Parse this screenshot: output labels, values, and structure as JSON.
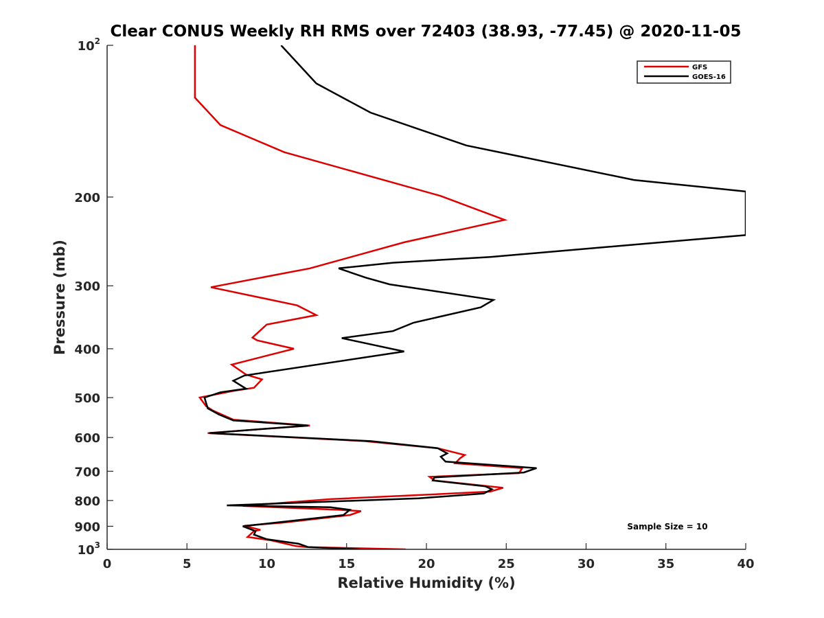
{
  "chart_data": {
    "type": "line",
    "title": "Clear CONUS Weekly RH RMS over 72403 (38.93, -77.45) @ 2020-11-05",
    "xlabel": "Relative Humidity (%)",
    "ylabel": "Pressure (mb)",
    "xlim": [
      0,
      40
    ],
    "ylim": [
      100,
      1000
    ],
    "y_scale": "log",
    "y_reversed": true,
    "grid": false,
    "legend_position": "top-right",
    "x_ticks": [
      "0",
      "5",
      "10",
      "15",
      "20",
      "25",
      "30",
      "35",
      "40"
    ],
    "y_ticks": [
      {
        "value": 100,
        "base": "10",
        "exp": "2"
      },
      {
        "value": 200,
        "label": "200"
      },
      {
        "value": 300,
        "label": "300"
      },
      {
        "value": 400,
        "label": "400"
      },
      {
        "value": 500,
        "label": "500"
      },
      {
        "value": 600,
        "label": "600"
      },
      {
        "value": 700,
        "label": "700"
      },
      {
        "value": 800,
        "label": "800"
      },
      {
        "value": 900,
        "label": "900"
      },
      {
        "value": 1000,
        "base": "10",
        "exp": "3"
      }
    ],
    "series": [
      {
        "name": "GFS",
        "color": "#dd0000",
        "points": [
          [
            18.7,
            1000
          ],
          [
            12.5,
            990
          ],
          [
            11.8,
            985
          ],
          [
            10.3,
            960
          ],
          [
            8.8,
            945
          ],
          [
            9.2,
            920
          ],
          [
            9.6,
            915
          ],
          [
            9.0,
            905
          ],
          [
            8.6,
            898
          ],
          [
            11.0,
            885
          ],
          [
            15.2,
            855
          ],
          [
            15.9,
            840
          ],
          [
            14.6,
            835
          ],
          [
            8.5,
            820
          ],
          [
            14.0,
            795
          ],
          [
            19.7,
            780
          ],
          [
            24.0,
            768
          ],
          [
            24.8,
            755
          ],
          [
            20.5,
            730
          ],
          [
            20.2,
            718
          ],
          [
            25.8,
            706
          ],
          [
            26.0,
            690
          ],
          [
            21.8,
            675
          ],
          [
            22.1,
            660
          ],
          [
            22.4,
            650
          ],
          [
            20.7,
            630
          ],
          [
            16.1,
            610
          ],
          [
            6.3,
            588
          ],
          [
            12.7,
            568
          ],
          [
            7.9,
            553
          ],
          [
            6.6,
            530
          ],
          [
            6.2,
            520
          ],
          [
            5.8,
            500
          ],
          [
            7.9,
            485
          ],
          [
            9.2,
            478
          ],
          [
            9.7,
            460
          ],
          [
            8.7,
            450
          ],
          [
            7.8,
            430
          ],
          [
            11.7,
            400
          ],
          [
            9.4,
            385
          ],
          [
            9.1,
            380
          ],
          [
            10.0,
            358
          ],
          [
            13.1,
            343
          ],
          [
            11.9,
            328
          ],
          [
            6.5,
            302
          ],
          [
            12.7,
            277
          ],
          [
            18.6,
            246
          ],
          [
            24.9,
            222
          ],
          [
            20.9,
            199
          ],
          [
            11.1,
            163
          ],
          [
            7.1,
            144
          ],
          [
            5.5,
            127
          ],
          [
            5.5,
            100
          ]
        ]
      },
      {
        "name": "GOES-16",
        "color": "#000000",
        "points": [
          [
            15.8,
            1000
          ],
          [
            14.2,
            995
          ],
          [
            12.6,
            990
          ],
          [
            12.0,
            975
          ],
          [
            10.0,
            955
          ],
          [
            9.2,
            935
          ],
          [
            9.3,
            920
          ],
          [
            8.5,
            900
          ],
          [
            14.8,
            855
          ],
          [
            15.2,
            835
          ],
          [
            14.0,
            825
          ],
          [
            7.5,
            818
          ],
          [
            19.5,
            792
          ],
          [
            23.6,
            775
          ],
          [
            24.1,
            760
          ],
          [
            23.7,
            750
          ],
          [
            20.4,
            730
          ],
          [
            20.5,
            720
          ],
          [
            26.1,
            704
          ],
          [
            26.9,
            690
          ],
          [
            21.2,
            670
          ],
          [
            20.9,
            655
          ],
          [
            21.3,
            645
          ],
          [
            20.7,
            630
          ],
          [
            16.5,
            610
          ],
          [
            6.4,
            588
          ],
          [
            12.6,
            568
          ],
          [
            7.9,
            555
          ],
          [
            7.0,
            540
          ],
          [
            6.3,
            525
          ],
          [
            6.1,
            500
          ],
          [
            7.1,
            488
          ],
          [
            8.7,
            480
          ],
          [
            7.9,
            463
          ],
          [
            8.6,
            452
          ],
          [
            18.6,
            405
          ],
          [
            14.7,
            381
          ],
          [
            17.9,
            369
          ],
          [
            19.2,
            355
          ],
          [
            23.4,
            331
          ],
          [
            24.2,
            320
          ],
          [
            17.7,
            298
          ],
          [
            16.2,
            289
          ],
          [
            14.5,
            277
          ],
          [
            17.9,
            270
          ],
          [
            24.0,
            263
          ],
          [
            40.0,
            238
          ],
          [
            40.0,
            195
          ],
          [
            33.0,
            185
          ],
          [
            22.5,
            158
          ],
          [
            16.5,
            136
          ],
          [
            13.1,
            119
          ],
          [
            10.9,
            100
          ]
        ]
      }
    ],
    "annotations": [
      "Sample Size = 10"
    ]
  }
}
